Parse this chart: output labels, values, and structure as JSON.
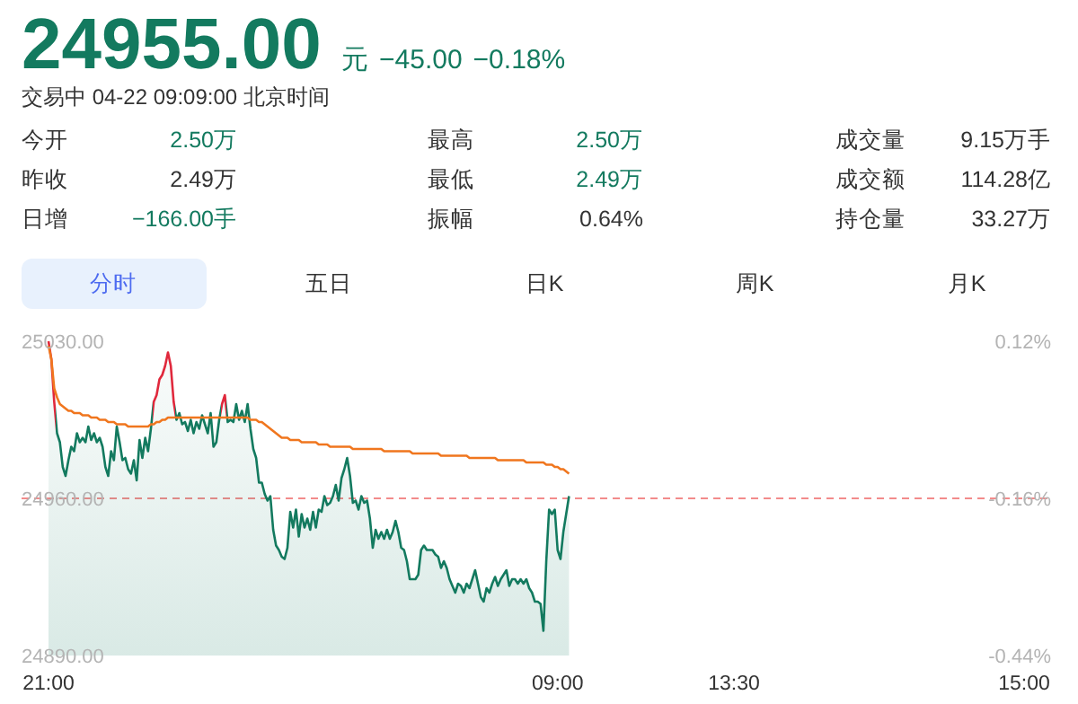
{
  "chart_data": [
    {
      "type": "other",
      "title": "24955.00",
      "annotations": [
        "元",
        "−45.00",
        "−0.18%",
        "交易中 04-22 09:09:00 北京时间",
        "今开",
        "2.50万",
        "最高",
        "2.50万",
        "成交量",
        "9.15万手",
        "昨收",
        "2.49万",
        "最低",
        "2.49万",
        "成交额",
        "114.28亿",
        "日增",
        "−166.00手",
        "振幅",
        "0.64%",
        "持仓量",
        "33.27万",
        "分时",
        "五日",
        "日K",
        "周K",
        "月K"
      ]
    },
    {
      "type": "line",
      "marker": "none",
      "line_style": "solid",
      "categories": [
        "21:00",
        null,
        null,
        null,
        null,
        null,
        null,
        null,
        null,
        null,
        null,
        null,
        null,
        null,
        null,
        null,
        null,
        null,
        null,
        null,
        null,
        null,
        null,
        null,
        null,
        null,
        null,
        null,
        null,
        null,
        null,
        null,
        null,
        null,
        null,
        null,
        null,
        null,
        null,
        null,
        null,
        null,
        null,
        null,
        null,
        null,
        null,
        null,
        null,
        null,
        null,
        null,
        null,
        null,
        null,
        null,
        null,
        null,
        null,
        null,
        null,
        null,
        null,
        null,
        null,
        null,
        null,
        null,
        null,
        null,
        null,
        null,
        null,
        null,
        null,
        null,
        null,
        null,
        null,
        null,
        null,
        null,
        null,
        null,
        null,
        null,
        null,
        null,
        null,
        null,
        null,
        null,
        null,
        null,
        null,
        null,
        null,
        null,
        null,
        null,
        null,
        null,
        null,
        null,
        null,
        null,
        null,
        null,
        null,
        null,
        null,
        null,
        null,
        null,
        null,
        null,
        null,
        null,
        null,
        null,
        null,
        null,
        null,
        null,
        null,
        null,
        null,
        null,
        null,
        null,
        null,
        null,
        null,
        null,
        null,
        null,
        null,
        null,
        null,
        null,
        null,
        null,
        null,
        null,
        null,
        null,
        null,
        null,
        null,
        null,
        null,
        null,
        null,
        null,
        null,
        null,
        null,
        null,
        null,
        null,
        null,
        null,
        null,
        null,
        null,
        null,
        null,
        null,
        null,
        null,
        null,
        null,
        null,
        null,
        null,
        null,
        null,
        null,
        null,
        "09:00",
        null,
        null,
        null,
        null,
        null,
        null,
        null,
        null,
        null,
        null,
        null,
        null,
        null,
        null,
        null,
        null,
        null,
        null,
        null,
        null,
        null,
        null,
        null,
        null,
        null,
        null,
        null,
        null,
        null,
        null,
        null,
        null,
        null,
        null,
        null,
        null,
        null,
        null,
        null,
        null,
        null,
        null,
        null,
        null,
        null,
        null,
        null,
        null,
        null,
        null,
        null,
        null,
        null,
        null,
        null,
        null,
        null,
        null,
        null,
        null,
        null,
        "13:30",
        null,
        null,
        null,
        null,
        null,
        null,
        null,
        null,
        null,
        null,
        null,
        null,
        null,
        null,
        null,
        null,
        null,
        null,
        null,
        null,
        null,
        null,
        null,
        null,
        null,
        null,
        null,
        null,
        null,
        null,
        null,
        null,
        null,
        null,
        null,
        null,
        null,
        null,
        null,
        null,
        null,
        null,
        null,
        null,
        null,
        null,
        null,
        null,
        null,
        null,
        null,
        null,
        null,
        null,
        null,
        null,
        null,
        null,
        null,
        null,
        null,
        null,
        null,
        null,
        null,
        null,
        null,
        null,
        null,
        null,
        null,
        null,
        null,
        null,
        null,
        null,
        null,
        null,
        null,
        null,
        null,
        null,
        null,
        null,
        null,
        null,
        null,
        null,
        null,
        null,
        null,
        null,
        null,
        null,
        null,
        null,
        null,
        null,
        null,
        null,
        null,
        "15:00"
      ],
      "ylim": [
        24890,
        25030
      ],
      "yticks": [
        {
          "value": 24890,
          "label": "24890.00"
        },
        {
          "value": 24960,
          "label": "24960.00"
        },
        {
          "value": 25030,
          "label": "25030.00"
        }
      ],
      "y2lim": [
        -0.44,
        0.12
      ],
      "y2ticks": [
        {
          "value": -0.44,
          "label": "-0.44%"
        },
        {
          "value": -0.16,
          "label": "-0.16%"
        },
        {
          "value": 0.12,
          "label": "0.12%"
        }
      ],
      "ref_lines": [
        {
          "axis": "y",
          "value": 24960,
          "color": "#f28b8b",
          "line_style": "dashed"
        }
      ],
      "series": [
        {
          "type": "area",
          "color": "#137a5f",
          "values": [
            25030,
            25022,
            25003,
            24989,
            24985,
            24974,
            24970,
            24977,
            24983,
            24981,
            24989,
            24985,
            24987,
            24985,
            24992,
            24986,
            24989,
            24985,
            24987,
            24983,
            24974,
            24970,
            24981,
            24977,
            24992,
            24985,
            24977,
            24978,
            24973,
            24971,
            24977,
            24968,
            24986,
            24978,
            24987,
            24981,
            24991,
            25003,
            25006,
            25013,
            25015,
            25019,
            25025,
            25019,
            25003,
            24995,
            24998,
            24993,
            24994,
            24990,
            24995,
            24989,
            24994,
            24991,
            24997,
            24993,
            24989,
            24998,
            24983,
            24985,
            24995,
            25002,
            25006,
            24994,
            24995,
            24994,
            25002,
            24995,
            24999,
            24994,
            25002,
            24991,
            24982,
            24978,
            24967,
            24967,
            24962,
            24959,
            24961,
            24946,
            24939,
            24937,
            24934,
            24933,
            24938,
            24954,
            24947,
            24955,
            24943,
            24953,
            24947,
            24951,
            24946,
            24954,
            24947,
            24955,
            24954,
            24961,
            24957,
            24958,
            24961,
            24966,
            24959,
            24969,
            24973,
            24978,
            24970,
            24958,
            24959,
            24955,
            24961,
            24958,
            24959,
            24951,
            24938,
            24946,
            24942,
            24945,
            24942,
            24946,
            24942,
            24945,
            24950,
            24945,
            24938,
            24937,
            24932,
            24924,
            24924,
            24924,
            24926,
            24937,
            24939,
            24937,
            24937,
            24937,
            24935,
            24934,
            24929,
            24932,
            24929,
            24924,
            24921,
            24918,
            24922,
            24921,
            24918,
            24922,
            24920,
            24924,
            24928,
            24922,
            24916,
            24914,
            24920,
            24918,
            24922,
            24925,
            24921,
            24924,
            24926,
            24928,
            24921,
            24924,
            24924,
            24922,
            24924,
            24922,
            24924,
            24920,
            24918,
            24914,
            24914,
            24913,
            24901,
            24932,
            24955,
            24953,
            24955,
            24937,
            24933,
            24945,
            24953,
            24961,
            null,
            null,
            null,
            null,
            null,
            null,
            null,
            null,
            null,
            null,
            null,
            null,
            null,
            null,
            null,
            null,
            null,
            null,
            null,
            null,
            null,
            null,
            null,
            null,
            null,
            null,
            null,
            null,
            null,
            null,
            null,
            null,
            null,
            null,
            null,
            null,
            null,
            null,
            null,
            null,
            null,
            null,
            null,
            null,
            null,
            null,
            null,
            null,
            null,
            null,
            null,
            null,
            null,
            null,
            null,
            null,
            null,
            null,
            null,
            null,
            null,
            null,
            null,
            null,
            null,
            null,
            null,
            null,
            null,
            null,
            null,
            null,
            null,
            null,
            null,
            null,
            null,
            null,
            null,
            null,
            null,
            null,
            null,
            null,
            null,
            null,
            null,
            null,
            null,
            null,
            null,
            null,
            null,
            null,
            null,
            null,
            null,
            null,
            null,
            null,
            null,
            null,
            null,
            null,
            null,
            null,
            null,
            null,
            null,
            null,
            null,
            null,
            null,
            null,
            null,
            null,
            null,
            null,
            null,
            null,
            null,
            null,
            null,
            null,
            null,
            null,
            null,
            null,
            null,
            null,
            null,
            null,
            null,
            null,
            null,
            null,
            null,
            null,
            null,
            null,
            null,
            null,
            null,
            null,
            null,
            null,
            null,
            null,
            null,
            null,
            null,
            null,
            null,
            null,
            null,
            null,
            null,
            null,
            null,
            null
          ],
          "colors": [
            "#e0283c",
            "#e0283c",
            "#e0283c",
            "#137a5f",
            "#137a5f",
            "#137a5f",
            "#137a5f",
            "#137a5f",
            "#137a5f",
            "#137a5f",
            "#137a5f",
            "#137a5f",
            "#137a5f",
            "#137a5f",
            "#137a5f",
            "#137a5f",
            "#137a5f",
            "#137a5f",
            "#137a5f",
            "#137a5f",
            "#137a5f",
            "#137a5f",
            "#137a5f",
            "#137a5f",
            "#137a5f",
            "#137a5f",
            "#137a5f",
            "#137a5f",
            "#137a5f",
            "#137a5f",
            "#137a5f",
            "#137a5f",
            "#137a5f",
            "#137a5f",
            "#137a5f",
            "#137a5f",
            "#137a5f",
            "#e0283c",
            "#e0283c",
            "#e0283c",
            "#e0283c",
            "#e0283c",
            "#e0283c",
            "#e0283c",
            "#e0283c",
            "#137a5f",
            "#137a5f",
            "#137a5f",
            "#137a5f",
            "#137a5f",
            "#137a5f",
            "#137a5f",
            "#137a5f",
            "#137a5f",
            "#137a5f",
            "#137a5f",
            "#137a5f",
            "#137a5f",
            "#137a5f",
            "#137a5f",
            "#137a5f",
            "#e0283c",
            "#e0283c",
            "#137a5f",
            "#137a5f",
            "#137a5f",
            "#137a5f",
            "#137a5f",
            "#137a5f",
            "#137a5f",
            "#137a5f",
            "#137a5f",
            "#137a5f",
            "#137a5f",
            "#137a5f",
            "#137a5f",
            "#137a5f",
            "#137a5f",
            "#137a5f",
            "#137a5f",
            "#137a5f",
            "#137a5f",
            "#137a5f",
            "#137a5f",
            "#137a5f",
            "#137a5f",
            "#137a5f",
            "#137a5f",
            "#137a5f",
            "#137a5f",
            "#137a5f",
            "#137a5f",
            "#137a5f",
            "#137a5f",
            "#137a5f",
            "#137a5f",
            "#137a5f",
            "#137a5f",
            "#137a5f",
            "#137a5f",
            "#137a5f",
            "#137a5f",
            "#137a5f",
            "#137a5f",
            "#137a5f",
            "#137a5f",
            "#137a5f",
            "#137a5f",
            "#137a5f",
            "#137a5f",
            "#137a5f",
            "#137a5f",
            "#137a5f",
            "#137a5f",
            "#137a5f",
            "#137a5f",
            "#137a5f",
            "#137a5f",
            "#137a5f",
            "#137a5f",
            "#137a5f",
            "#137a5f",
            "#137a5f",
            "#137a5f",
            "#137a5f",
            "#137a5f",
            "#137a5f",
            "#137a5f",
            "#137a5f",
            "#137a5f",
            "#137a5f",
            "#137a5f",
            "#137a5f",
            "#137a5f",
            "#137a5f",
            "#137a5f",
            "#137a5f",
            "#137a5f",
            "#137a5f",
            "#137a5f",
            "#137a5f",
            "#137a5f",
            "#137a5f",
            "#137a5f",
            "#137a5f",
            "#137a5f",
            "#137a5f",
            "#137a5f",
            "#137a5f",
            "#137a5f",
            "#137a5f",
            "#137a5f",
            "#137a5f",
            "#137a5f",
            "#137a5f",
            "#137a5f",
            "#137a5f",
            "#137a5f",
            "#137a5f",
            "#137a5f",
            "#137a5f",
            "#137a5f",
            "#137a5f",
            "#137a5f",
            "#137a5f",
            "#137a5f",
            "#137a5f",
            "#137a5f",
            "#137a5f",
            "#137a5f",
            "#137a5f",
            "#137a5f",
            "#137a5f",
            "#137a5f",
            "#137a5f",
            "#137a5f",
            "#137a5f",
            "#137a5f",
            "#137a5f",
            "#137a5f",
            "#137a5f",
            "#137a5f",
            "#137a5f",
            "#137a5f",
            null,
            null,
            null,
            null,
            null,
            null,
            null,
            null,
            null,
            null,
            null,
            null,
            null,
            null,
            null,
            null,
            null,
            null,
            null,
            null,
            null,
            null,
            null,
            null,
            null,
            null,
            null,
            null,
            null,
            null,
            null,
            null,
            null,
            null,
            null,
            null,
            null,
            null,
            null,
            null,
            null,
            null,
            null,
            null,
            null,
            null,
            null,
            null,
            null,
            null,
            null,
            null,
            null,
            null,
            null,
            null,
            null,
            null,
            null,
            null,
            null,
            null,
            null,
            null,
            null,
            null,
            null,
            null,
            null,
            null,
            null,
            null,
            null,
            null,
            null,
            null,
            null,
            null,
            null,
            null,
            null,
            null,
            null,
            null,
            null,
            null,
            null,
            null,
            null,
            null,
            null,
            null,
            null,
            null,
            null,
            null,
            null,
            null,
            null,
            null,
            null,
            null,
            null,
            null,
            null,
            null,
            null,
            null,
            null,
            null,
            null,
            null,
            null,
            null,
            null,
            null,
            null,
            null,
            null,
            null,
            null,
            null,
            null,
            null,
            null,
            null,
            null,
            null,
            null,
            null,
            null,
            null,
            null,
            null,
            null,
            null,
            null,
            null,
            null,
            null,
            null,
            null,
            null,
            null,
            null,
            null,
            null,
            null,
            null,
            null,
            null,
            null,
            null,
            null,
            null,
            null,
            null,
            null,
            null,
            null
          ]
        },
        {
          "type": "line",
          "color": "#f0761e",
          "values": [
            25028,
            25022,
            25009,
            25005,
            25002,
            25001,
            25000,
            24999,
            24999,
            24998,
            24998,
            24998,
            24997,
            24997,
            24997,
            24996,
            24996,
            24996,
            24995,
            24995,
            24995,
            24994,
            24994,
            24994,
            24993,
            24993,
            24993,
            24993,
            24992,
            24992,
            24992,
            24992,
            24992,
            24992,
            24992,
            24992,
            24993,
            24993,
            24994,
            24994,
            24995,
            24995,
            24996,
            24996,
            24996,
            24996,
            24996,
            24996,
            24996,
            24996,
            24996,
            24996,
            24996,
            24996,
            24996,
            24996,
            24996,
            24996,
            24996,
            24996,
            24996,
            24996,
            24996,
            24996,
            24996,
            24996,
            24996,
            24996,
            24996,
            24996,
            24996,
            24995,
            24995,
            24995,
            24994,
            24994,
            24993,
            24992,
            24991,
            24990,
            24989,
            24988,
            24987,
            24987,
            24987,
            24986,
            24986,
            24986,
            24986,
            24985,
            24985,
            24985,
            24985,
            24985,
            24985,
            24984,
            24984,
            24984,
            24984,
            24983,
            24983,
            24983,
            24983,
            24983,
            24983,
            24983,
            24983,
            24982,
            24982,
            24982,
            24982,
            24982,
            24982,
            24982,
            24982,
            24982,
            24982,
            24982,
            24981,
            24981,
            24981,
            24981,
            24981,
            24981,
            24981,
            24981,
            24981,
            24981,
            24980,
            24980,
            24980,
            24980,
            24980,
            24980,
            24980,
            24980,
            24980,
            24980,
            24979,
            24979,
            24979,
            24979,
            24979,
            24979,
            24979,
            24979,
            24979,
            24979,
            24978,
            24978,
            24978,
            24978,
            24978,
            24978,
            24978,
            24978,
            24978,
            24978,
            24977,
            24977,
            24977,
            24977,
            24977,
            24977,
            24977,
            24977,
            24977,
            24977,
            24976,
            24976,
            24976,
            24976,
            24976,
            24976,
            24976,
            24975,
            24975,
            24975,
            24974,
            24974,
            24973,
            24973,
            24972,
            24971,
            null,
            null,
            null,
            null,
            null,
            null,
            null,
            null,
            null,
            null,
            null,
            null,
            null,
            null,
            null,
            null,
            null,
            null,
            null,
            null,
            null,
            null,
            null,
            null,
            null,
            null,
            null,
            null,
            null,
            null,
            null,
            null,
            null,
            null,
            null,
            null,
            null,
            null,
            null,
            null,
            null,
            null,
            null,
            null,
            null,
            null,
            null,
            null,
            null,
            null,
            null,
            null,
            null,
            null,
            null,
            null,
            null,
            null,
            null,
            null,
            null,
            null,
            null,
            null,
            null,
            null,
            null,
            null,
            null,
            null,
            null,
            null,
            null,
            null,
            null,
            null,
            null,
            null,
            null,
            null,
            null,
            null,
            null,
            null,
            null,
            null,
            null,
            null,
            null,
            null,
            null,
            null,
            null,
            null,
            null,
            null,
            null,
            null,
            null,
            null,
            null,
            null,
            null,
            null,
            null,
            null,
            null,
            null,
            null,
            null,
            null,
            null,
            null,
            null,
            null,
            null,
            null,
            null,
            null,
            null,
            null,
            null,
            null,
            null,
            null,
            null,
            null,
            null,
            null,
            null,
            null,
            null,
            null,
            null,
            null,
            null,
            null,
            null,
            null,
            null,
            null,
            null,
            null,
            null,
            null,
            null,
            null,
            null,
            null,
            null,
            null,
            null,
            null,
            null,
            null,
            null,
            null,
            null,
            null,
            null
          ]
        }
      ]
    }
  ]
}
